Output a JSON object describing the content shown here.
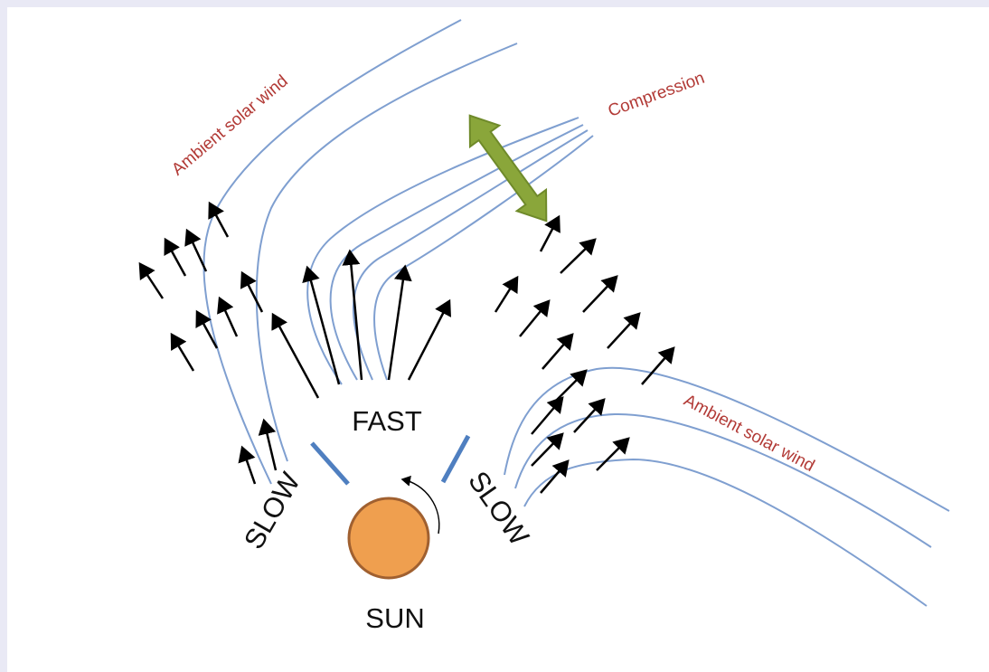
{
  "labels": {
    "ambient_upper": "Ambient solar wind",
    "compression": "Compression",
    "ambient_lower": "Ambient solar wind",
    "fast": "FAST",
    "slow_left": "SLOW",
    "slow_right": "SLOW",
    "sun": "SUN"
  }
}
